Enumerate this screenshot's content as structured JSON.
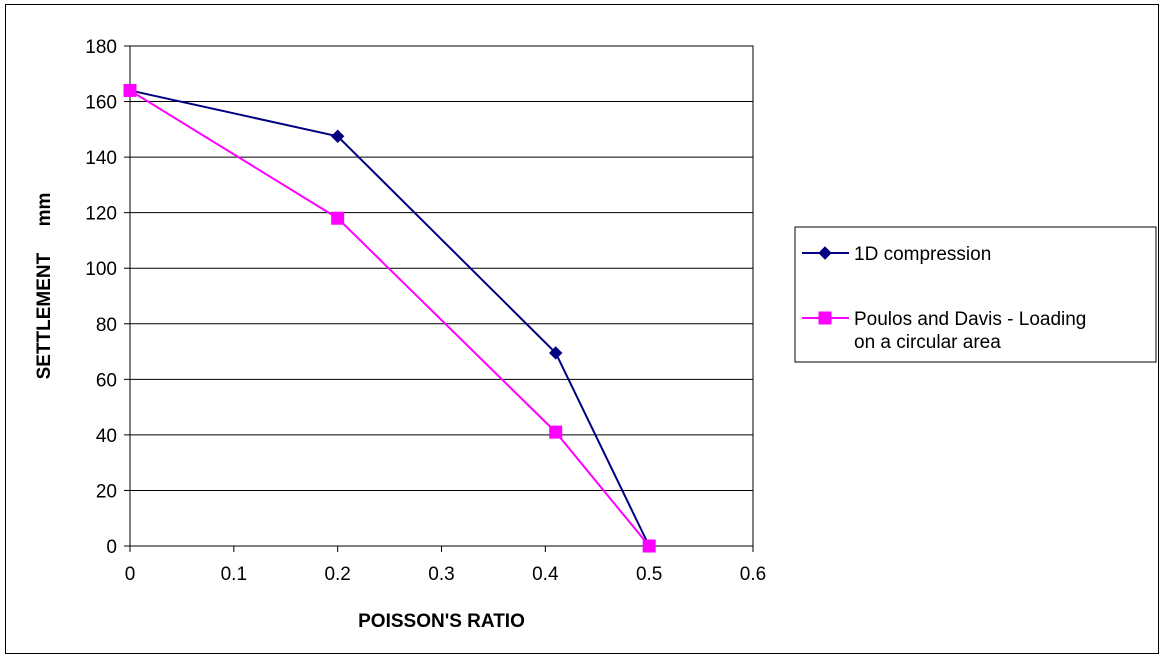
{
  "chart_data": {
    "type": "line",
    "title": "",
    "xlabel": "POISSON'S RATIO",
    "ylabel": "SETTLEMENT     mm",
    "xlim": [
      0,
      0.6
    ],
    "ylim": [
      0,
      180
    ],
    "x_ticks": [
      "0",
      "0.1",
      "0.2",
      "0.3",
      "0.4",
      "0.5",
      "0.6"
    ],
    "y_ticks": [
      "0",
      "20",
      "40",
      "60",
      "80",
      "100",
      "120",
      "140",
      "160",
      "180"
    ],
    "grid": "horizontal",
    "legend_position": "right",
    "series": [
      {
        "name": "1D compression",
        "color": "#000080",
        "marker": "diamond",
        "x": [
          0,
          0.2,
          0.41,
          0.5
        ],
        "y": [
          164,
          147.5,
          69.5,
          0
        ]
      },
      {
        "name": "Poulos and Davis - Loading on a circular area",
        "legend_lines": [
          "Poulos and Davis - Loading",
          "on a circular area"
        ],
        "color": "#ff00ff",
        "marker": "square",
        "x": [
          0,
          0.2,
          0.41,
          0.5
        ],
        "y": [
          164,
          118,
          41,
          0
        ]
      }
    ]
  }
}
